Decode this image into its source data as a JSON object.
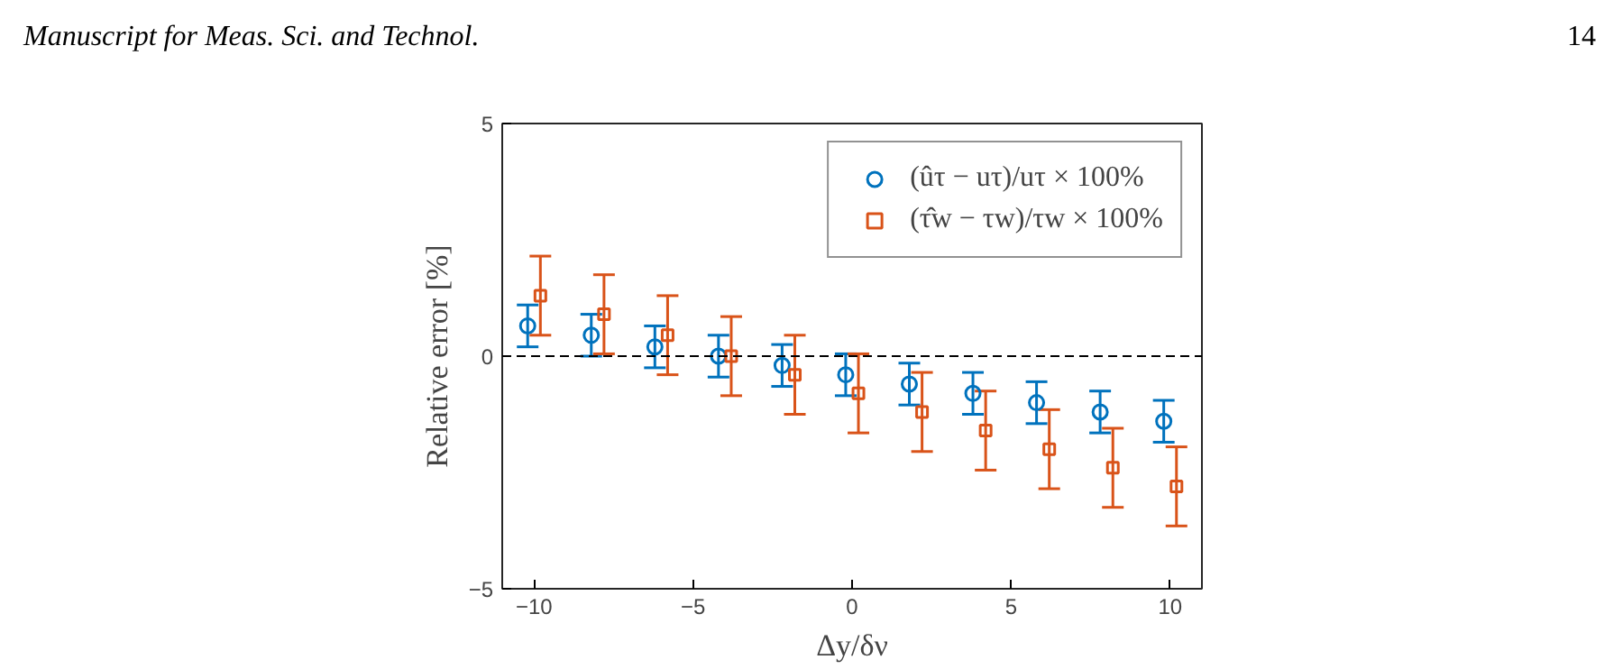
{
  "chart_data": {
    "type": "scatter",
    "annotations": [
      "Manuscript for Meas. Sci. and Technol.",
      "14"
    ],
    "xlabel": "Δy/δν",
    "ylabel": "Relative error [%]",
    "xlim": [
      -11,
      11
    ],
    "xticks": [
      -10,
      -5,
      0,
      5,
      10
    ],
    "ylim": [
      -5,
      5
    ],
    "yticks": [
      -5,
      0,
      5
    ],
    "grid": false,
    "legend": "top right",
    "ref_lines": [
      {
        "axis": "y",
        "value": 0,
        "color": "#000000",
        "line_style": "dashed"
      }
    ],
    "series": [
      {
        "name": "(ûτ − uτ)/uτ × 100%",
        "color": "#0072bd",
        "marker": "circle",
        "x": [
          -10.2,
          -8.2,
          -6.2,
          -4.2,
          -2.2,
          -0.2,
          1.8,
          3.8,
          5.8,
          7.8,
          9.8
        ],
        "values": [
          0.65,
          0.45,
          0.2,
          0,
          -0.2,
          -0.4,
          -0.6,
          -0.8,
          -1.0,
          -1.2,
          -1.4
        ],
        "errors": [
          0.45,
          0.45,
          0.45,
          0.45,
          0.45,
          0.45,
          0.45,
          0.45,
          0.45,
          0.45,
          0.45
        ]
      },
      {
        "name": "(τ̂w − τw)/τw × 100%",
        "color": "#d95319",
        "marker": "square",
        "x": [
          -9.8,
          -7.8,
          -5.8,
          -3.8,
          -1.8,
          0.2,
          2.2,
          4.2,
          6.2,
          8.2,
          10.2
        ],
        "values": [
          1.3,
          0.9,
          0.45,
          0,
          -0.4,
          -0.8,
          -1.2,
          -1.6,
          -2.0,
          -2.4,
          -2.8
        ],
        "errors": [
          0.85,
          0.85,
          0.85,
          0.85,
          0.85,
          0.85,
          0.85,
          0.85,
          0.85,
          0.85,
          0.85
        ]
      }
    ]
  }
}
